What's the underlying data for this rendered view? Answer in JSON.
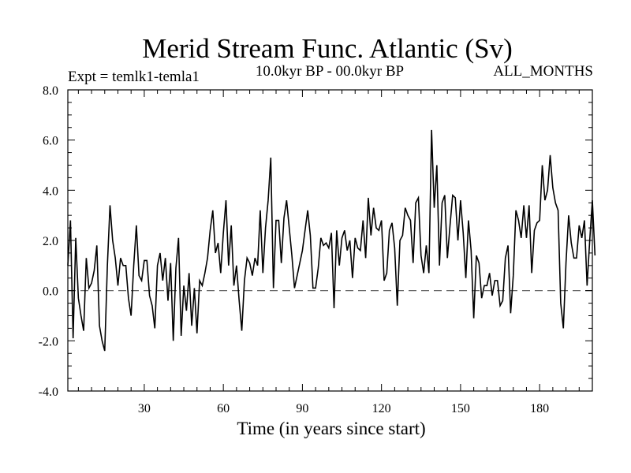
{
  "chart_data": {
    "type": "line",
    "title": "Merid Stream Func. Atlantic (Sv)",
    "subtitle_left": "Expt = temlk1-temla1",
    "subtitle_center": "10.0kyr BP - 00.0kyr BP",
    "subtitle_right": "ALL_MONTHS",
    "xlabel": "Time (in years since start)",
    "ylabel": "",
    "xlim": [
      1,
      200
    ],
    "ylim": [
      -4,
      8
    ],
    "xticks": [
      30,
      60,
      90,
      120,
      150,
      180
    ],
    "yticks": [
      -4,
      -2,
      0,
      2,
      4,
      6,
      8
    ],
    "ytick_labels": [
      "-4.0",
      "-2.0",
      "0.0",
      "2.0",
      "4.0",
      "6.0",
      "8.0"
    ],
    "zero_line": "dashed",
    "colors": {
      "line": "#000000",
      "background": "#ffffff"
    },
    "series": [
      {
        "name": "temlk1-temla1",
        "x_start": 1,
        "x_step": 1,
        "values": [
          1.0,
          2.8,
          -1.9,
          2.1,
          -0.3,
          -1.0,
          -1.6,
          1.3,
          0.1,
          0.3,
          0.8,
          1.8,
          -1.4,
          -2.0,
          -2.4,
          1.0,
          3.4,
          2.0,
          1.3,
          0.2,
          1.3,
          1.0,
          1.0,
          -0.3,
          -1.0,
          1.0,
          2.6,
          0.6,
          0.4,
          1.2,
          1.2,
          -0.2,
          -0.6,
          -1.5,
          1.0,
          1.5,
          0.4,
          1.3,
          -0.4,
          1.1,
          -2.0,
          0.9,
          2.1,
          -1.8,
          0.2,
          -0.8,
          0.7,
          -1.4,
          0.1,
          -1.7,
          0.4,
          0.2,
          0.7,
          1.3,
          2.4,
          3.2,
          1.5,
          1.9,
          0.7,
          2.3,
          3.6,
          1.0,
          2.6,
          0.2,
          1.0,
          -0.4,
          -1.6,
          0.4,
          1.3,
          1.1,
          0.6,
          1.3,
          1.0,
          3.2,
          0.7,
          2.5,
          3.6,
          5.3,
          0.1,
          2.8,
          2.8,
          1.1,
          2.9,
          3.6,
          2.5,
          1.4,
          0.1,
          0.6,
          1.1,
          1.6,
          2.4,
          3.2,
          2.2,
          0.1,
          0.1,
          0.9,
          2.1,
          1.8,
          1.9,
          1.7,
          2.3,
          -0.7,
          2.4,
          1.0,
          2.1,
          2.4,
          1.6,
          2.0,
          0.5,
          2.1,
          1.7,
          1.6,
          2.8,
          1.3,
          3.7,
          2.2,
          3.3,
          2.5,
          2.4,
          2.8,
          0.4,
          0.7,
          2.4,
          2.7,
          1.7,
          -0.6,
          2.0,
          2.2,
          3.3,
          3.0,
          2.8,
          1.1,
          3.5,
          3.7,
          1.4,
          0.7,
          1.8,
          0.7,
          6.4,
          3.3,
          5.0,
          1.0,
          3.5,
          3.8,
          1.3,
          2.6,
          3.8,
          3.7,
          2.0,
          3.6,
          2.3,
          0.5,
          2.8,
          1.6,
          -1.1,
          1.4,
          1.1,
          -0.3,
          0.2,
          0.2,
          0.7,
          -0.2,
          0.4,
          0.4,
          -0.6,
          -0.4,
          1.3,
          1.8,
          -0.9,
          0.6,
          3.2,
          2.8,
          2.1,
          3.4,
          2.1,
          3.4,
          0.7,
          2.4,
          2.7,
          2.8,
          5.0,
          3.6,
          4.0,
          5.4,
          4.1,
          3.5,
          3.2,
          -0.5,
          -1.5,
          1.1,
          3.0,
          1.9,
          1.3,
          1.3,
          2.6,
          2.1,
          2.8,
          0.2,
          2.0,
          3.6,
          1.4
        ]
      }
    ]
  }
}
